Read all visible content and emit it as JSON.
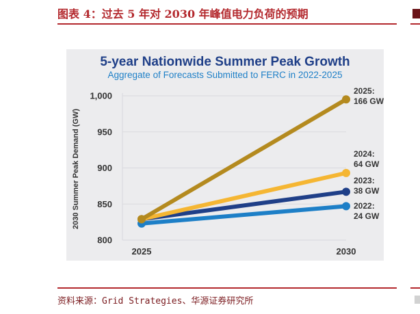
{
  "figure": {
    "title": "图表 4：过去 5 年对 2030 年峰值电力负荷的预期",
    "source": "资料来源：Grid Strategies、华源证券研究所"
  },
  "chart_data": {
    "type": "line",
    "title": "5-year Nationwide Summer Peak Growth",
    "subtitle": "Aggregate of Forecasts Submitted to FERC in 2022-2025",
    "xlabel": "",
    "ylabel": "2030 Summer Peak Demand (GW)",
    "x": [
      "2025",
      "2030"
    ],
    "ylim": [
      800,
      1000
    ],
    "yticks": [
      "800",
      "850",
      "900",
      "950",
      "1,000"
    ],
    "grid": true,
    "series": [
      {
        "name": "2022:",
        "label": "24 GW",
        "color": "#1d7fc7",
        "values": [
          823,
          847
        ]
      },
      {
        "name": "2023:",
        "label": "38 GW",
        "color": "#1f3f88",
        "values": [
          829,
          867
        ]
      },
      {
        "name": "2024:",
        "label": "64 GW",
        "color": "#f5b633",
        "values": [
          829,
          893
        ]
      },
      {
        "name": "2025:",
        "label": "166 GW",
        "color": "#b48a1f",
        "values": [
          829,
          995
        ]
      }
    ],
    "colors": {
      "title": "#1f3f88",
      "subtitle": "#1d7fc7",
      "axis_text": "#333333",
      "grid": "#d9d9de"
    }
  }
}
